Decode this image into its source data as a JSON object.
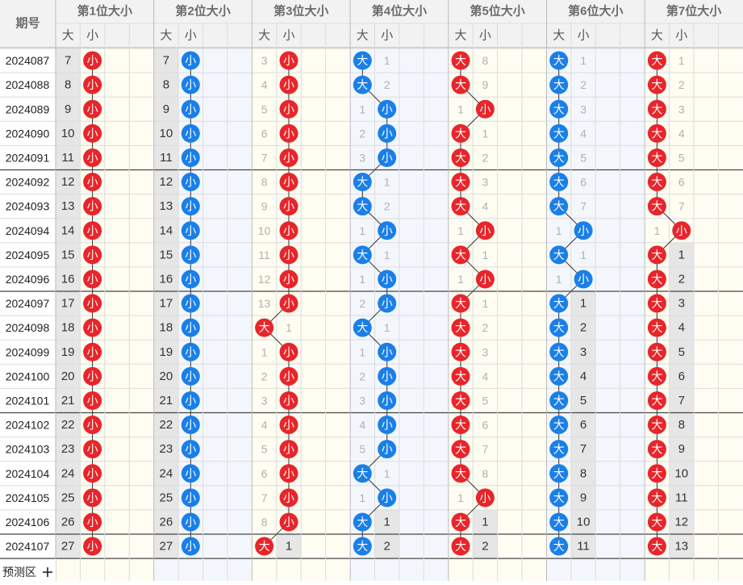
{
  "colors": {
    "red": "#e8252b",
    "blue": "#1a7fe8",
    "grid": "#dcdcdc",
    "header_bg": "#f2f2f2",
    "odd_bg": "#fffdf2",
    "even_bg": "#f3f7fd",
    "shaded": "#e6e6e6"
  },
  "header": {
    "period_label": "期号",
    "columns": [
      "第1位大小",
      "第2位大小",
      "第3位大小",
      "第4位大小",
      "第5位大小",
      "第6位大小",
      "第7位大小"
    ],
    "big_label": "大",
    "small_label": "小"
  },
  "periods": [
    "2024087",
    "2024088",
    "2024089",
    "2024090",
    "2024091",
    "2024092",
    "2024093",
    "2024094",
    "2024095",
    "2024096",
    "2024097",
    "2024098",
    "2024099",
    "2024100",
    "2024101",
    "2024102",
    "2024103",
    "2024104",
    "2024105",
    "2024106",
    "2024107"
  ],
  "results": [
    "SSSBBBB",
    "SSSBBBB",
    "SSSSSBB",
    "SSSSBBB",
    "SSSSBBB",
    "SSSBBBB",
    "SSSBBBB",
    "SSSSSSS",
    "SSSBBBB",
    "SSSSSSB",
    "SSSSBBB",
    "SSBBBBB",
    "SSSSBBB",
    "SSSSBBB",
    "SSSSBBB",
    "SSSSBBB",
    "SSSSBBB",
    "SSSBBBB",
    "SSSSSBB",
    "SSSBBBB",
    "SSBBBBB"
  ],
  "footer": {
    "predict_label": "预测区",
    "plus_icon": "plus-icon"
  }
}
